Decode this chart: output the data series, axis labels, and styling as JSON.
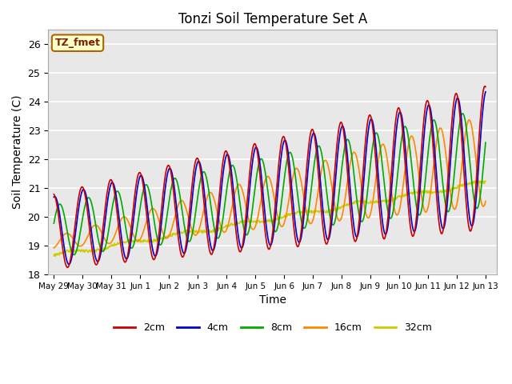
{
  "title": "Tonzi Soil Temperature Set A",
  "xlabel": "Time",
  "ylabel": "Soil Temperature (C)",
  "ylim": [
    18.0,
    26.5
  ],
  "annotation": "TZ_fmet",
  "legend": [
    "2cm",
    "4cm",
    "8cm",
    "16cm",
    "32cm"
  ],
  "line_colors": [
    "#cc0000",
    "#0000cc",
    "#00aa00",
    "#ff8800",
    "#cccc00"
  ],
  "bg_color": "#e8e8e8",
  "fig_bg": "#ffffff",
  "tick_labels": [
    "May 29",
    "May 30",
    "May 31",
    "Jun 1",
    "Jun 2",
    "Jun 3",
    "Jun 4",
    "Jun 5",
    "Jun 6",
    "Jun 7",
    "Jun 8",
    "Jun 9",
    "Jun 10",
    "Jun 11",
    "Jun 12",
    "Jun 13"
  ],
  "tick_positions": [
    0,
    1,
    2,
    3,
    4,
    5,
    6,
    7,
    8,
    9,
    10,
    11,
    12,
    13,
    14,
    15
  ],
  "yticks": [
    18.0,
    19.0,
    20.0,
    21.0,
    22.0,
    23.0,
    24.0,
    25.0,
    26.0
  ]
}
